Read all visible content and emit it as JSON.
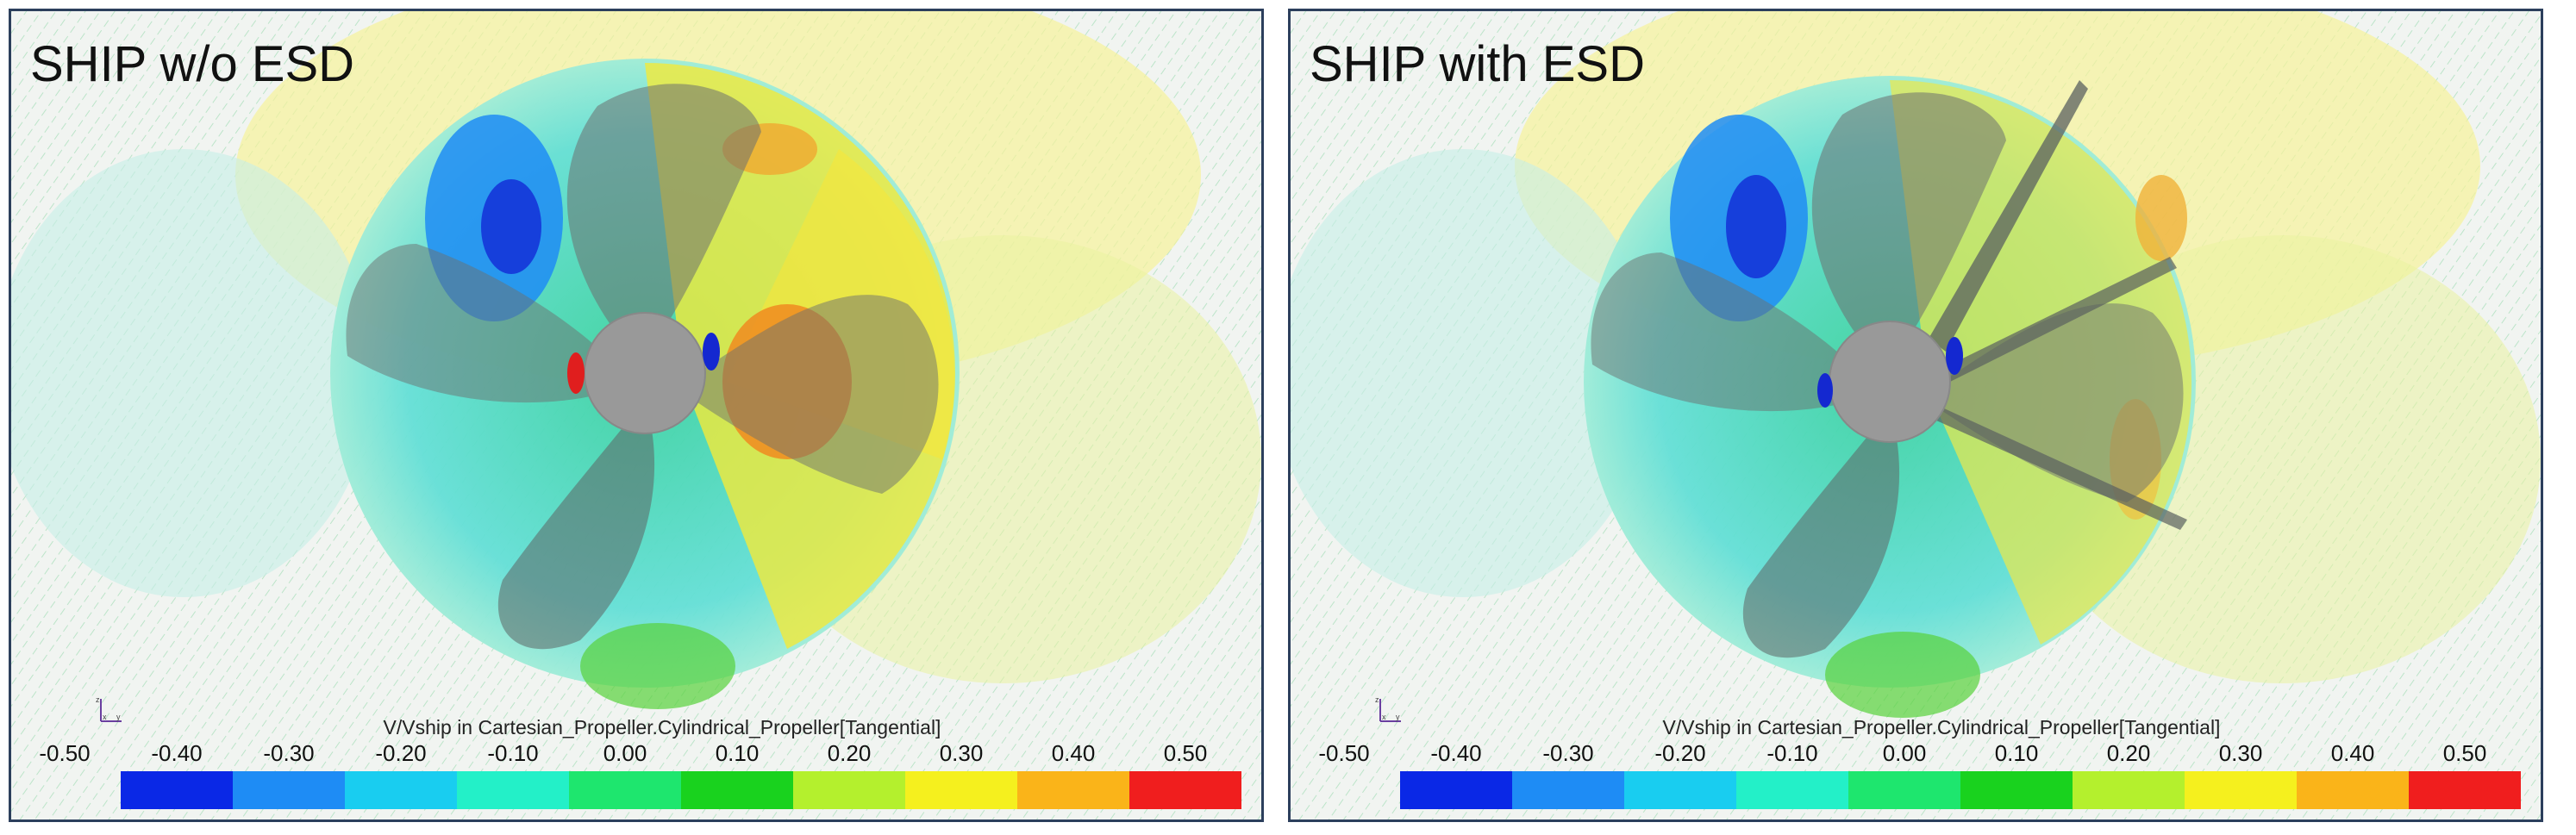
{
  "panels": [
    {
      "id": "left",
      "title": "SHIP w/o ESD",
      "has_esd": false,
      "colorbar_label": "V/Vship in Cartesian_Propeller.Cylindrical_Propeller[Tangential]"
    },
    {
      "id": "right",
      "title": "SHIP with ESD",
      "has_esd": true,
      "colorbar_label": "V/Vship in Cartesian_Propeller.Cylindrical_Propeller[Tangential]"
    }
  ],
  "colorbar": {
    "ticks": [
      "-0.50",
      "-0.40",
      "-0.30",
      "-0.20",
      "-0.10",
      "0.00",
      "0.10",
      "0.20",
      "0.30",
      "0.40",
      "0.50"
    ],
    "colors": [
      "#0a28e6",
      "#1e8cf5",
      "#19cdf0",
      "#23f0c8",
      "#1ee66e",
      "#19d21e",
      "#b4f02d",
      "#f5f01e",
      "#fab419",
      "#f01e1e"
    ]
  },
  "axes_triad": {
    "labels": [
      "z",
      "x",
      "y"
    ]
  },
  "palette": {
    "border": "#2c3f5c",
    "hub": "#999999",
    "blade": "#5a5f5f"
  }
}
